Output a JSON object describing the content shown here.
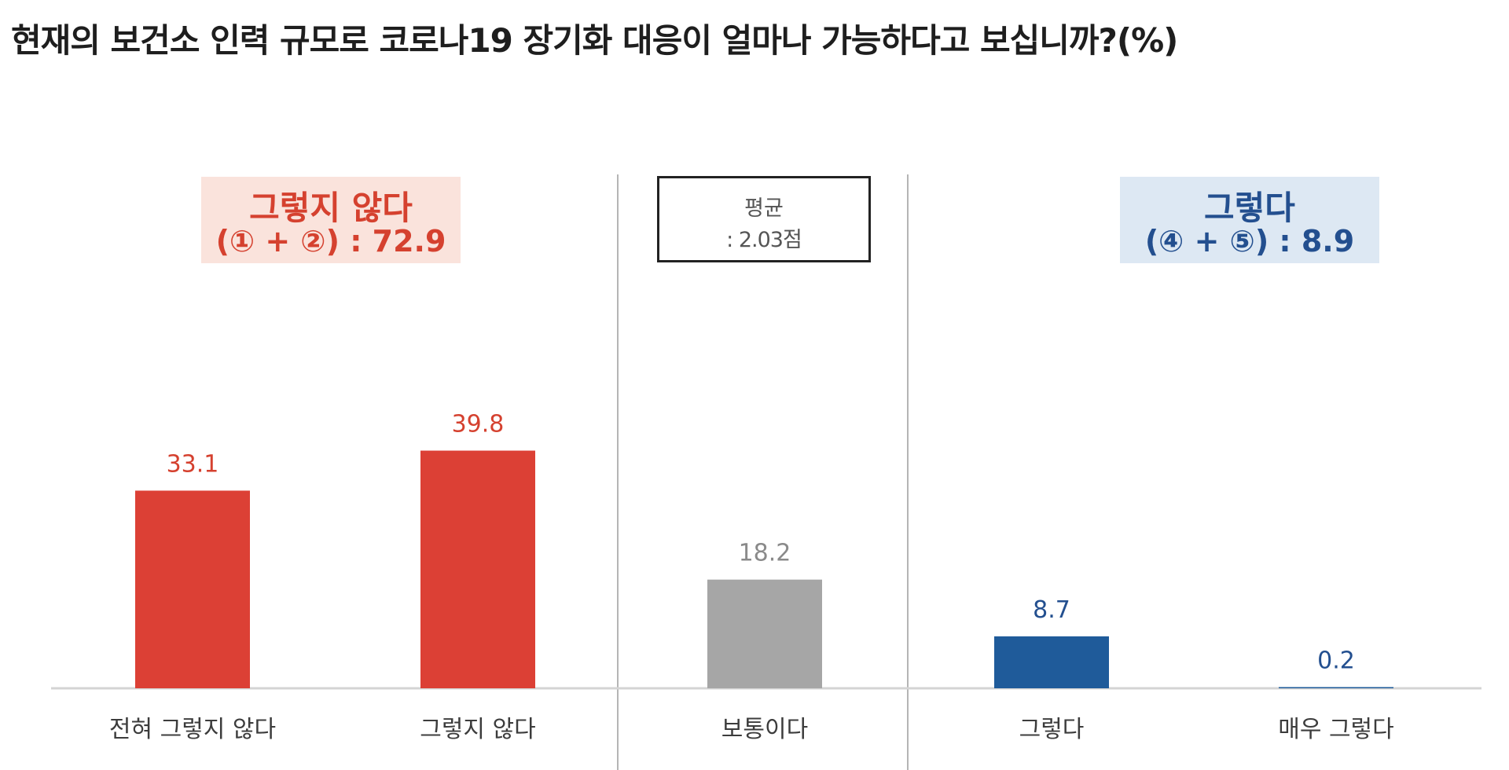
{
  "title": "현재의 보건소 인력 규모로 코로나19 장기화 대응이 얼마나 가능하다고 보십니까?(%)",
  "groups": {
    "negative": {
      "label": "그렇지 않다",
      "sum_label": "(① + ②) : 72.9",
      "color": "#d5412f"
    },
    "positive": {
      "label": "그렇다",
      "sum_label": "(④ + ⑤) : 8.9",
      "color": "#234f8f"
    }
  },
  "average": {
    "label": "평균",
    "value_label": ": 2.03점"
  },
  "chart_data": {
    "type": "bar",
    "title": "현재의 보건소 인력 규모로 코로나19 장기화 대응이 얼마나 가능하다고 보십니까?(%)",
    "categories": [
      "전혀 그렇지 않다",
      "그렇지 않다",
      "보통이다",
      "그렇다",
      "매우 그렇다"
    ],
    "values": [
      33.1,
      39.8,
      18.2,
      8.7,
      0.2
    ],
    "value_labels": [
      "33.1",
      "39.8",
      "18.2",
      "8.7",
      "0.2"
    ],
    "bar_colors": [
      "#dc4035",
      "#dc4035",
      "#a6a6a6",
      "#1f5b9a",
      "#1f5b9a"
    ],
    "label_colors": [
      "#d5412f",
      "#d5412f",
      "#8a8a8a",
      "#234f8f",
      "#234f8f"
    ],
    "ylim": [
      0,
      45
    ],
    "grid": false,
    "legend": "none"
  }
}
